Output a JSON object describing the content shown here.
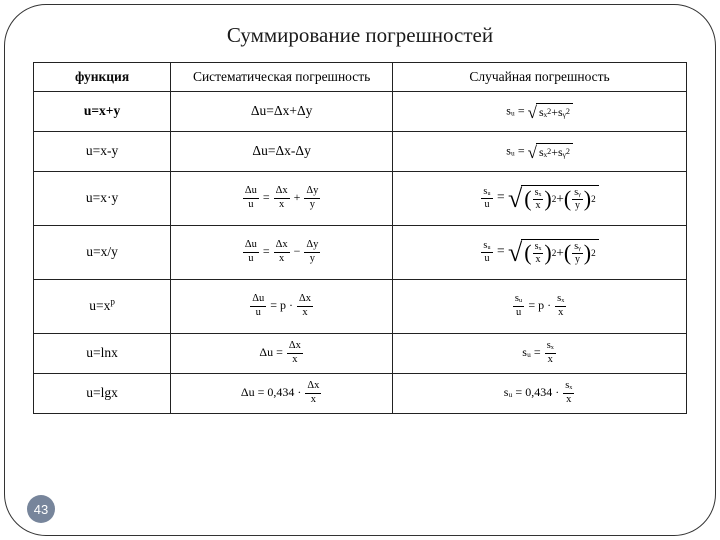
{
  "title": "Суммирование погрешностей",
  "page_number": "43",
  "colors": {
    "frame_border": "#333333",
    "badge_bg": "#77859b",
    "badge_fg": "#ffffff",
    "text": "#1a1a1a",
    "table_border": "#222222"
  },
  "headers": {
    "func": "функция",
    "systematic": "Систематическая погрешность",
    "random": "Случайная погрешность"
  },
  "rows": {
    "r1": {
      "func": "u=x+y",
      "sys": "Δu=Δx+Δy"
    },
    "r2": {
      "func": "u=x-y",
      "sys": "Δu=Δx-Δy"
    },
    "r3": {
      "func": "u=x·y"
    },
    "r4": {
      "func": "u=x/y"
    },
    "r5": {
      "func_base": "u=x",
      "func_exp": "p"
    },
    "r6": {
      "func": "u=lnx"
    },
    "r7": {
      "func": "u=lgx",
      "coef": "0,434"
    }
  },
  "symbols": {
    "Du": "Δu",
    "Dx": "Δx",
    "Dy": "Δy",
    "su": "sᵤ",
    "sx": "sₓ",
    "sy": "sᵧ",
    "u": "u",
    "x": "x",
    "y": "y",
    "p": "p",
    "eq": "=",
    "plus": "+",
    "minus": "−",
    "dot": "·"
  }
}
